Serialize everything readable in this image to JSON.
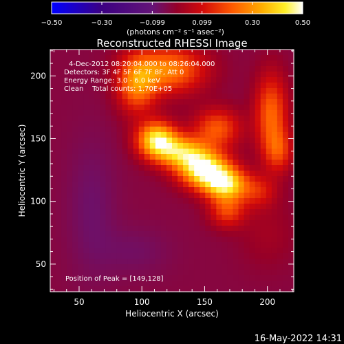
{
  "chart_data": {
    "type": "heatmap",
    "title": "Reconstructed RHESSI Image",
    "xlabel": "Heliocentric X (arcsec)",
    "ylabel": "Heliocentric Y (arcsec)",
    "xlim": [
      27,
      221
    ],
    "ylim": [
      28,
      221
    ],
    "x_ticks": [
      50,
      100,
      150,
      200
    ],
    "y_ticks": [
      50,
      100,
      150,
      200
    ],
    "colorbar": {
      "min": -0.5,
      "max": 0.5,
      "tick_values": [
        -0.5,
        -0.3,
        -0.099,
        0.099,
        0.3,
        0.5
      ],
      "tick_labels": [
        "−0.50",
        "−0.30",
        "−0.099",
        "0.099",
        "0.30",
        "0.50"
      ],
      "units": "(photons cm⁻² s⁻¹ asec⁻²)"
    },
    "annotations": [
      "4-Dec-2012 08:20:04.000 to 08:26:04.000",
      "Detectors: 3F 4F 5F 6F 7F 8F, Att 0",
      "Energy Range: 3.0 - 6.0 keV",
      "Clean    Total counts: 1.70E+05"
    ],
    "peak_label": "Position of Peak = [149,128]",
    "peak": [
      149,
      128
    ],
    "sources": [
      {
        "x": 150,
        "y": 125,
        "sx": 14,
        "sy": 10,
        "amp": 0.5
      },
      {
        "x": 167,
        "y": 113,
        "sx": 12,
        "sy": 9,
        "amp": 0.42
      },
      {
        "x": 112,
        "y": 149,
        "sx": 11,
        "sy": 10,
        "amp": 0.46
      },
      {
        "x": 132,
        "y": 139,
        "sx": 14,
        "sy": 9,
        "amp": 0.36
      },
      {
        "x": 96,
        "y": 193,
        "sx": 11,
        "sy": 16,
        "amp": 0.28
      },
      {
        "x": 122,
        "y": 205,
        "sx": 20,
        "sy": 13,
        "amp": 0.3
      },
      {
        "x": 160,
        "y": 158,
        "sx": 13,
        "sy": 11,
        "amp": 0.24
      },
      {
        "x": 203,
        "y": 170,
        "sx": 9,
        "sy": 22,
        "amp": 0.26
      },
      {
        "x": 209,
        "y": 140,
        "sx": 8,
        "sy": 12,
        "amp": 0.18
      },
      {
        "x": 168,
        "y": 92,
        "sx": 10,
        "sy": 9,
        "amp": 0.2
      },
      {
        "x": 193,
        "y": 108,
        "sx": 10,
        "sy": 9,
        "amp": 0.14
      },
      {
        "x": 200,
        "y": 75,
        "sx": 16,
        "sy": 20,
        "amp": 0.05
      }
    ],
    "background": -0.03
  },
  "footer_date": "16-May-2022 14:31"
}
